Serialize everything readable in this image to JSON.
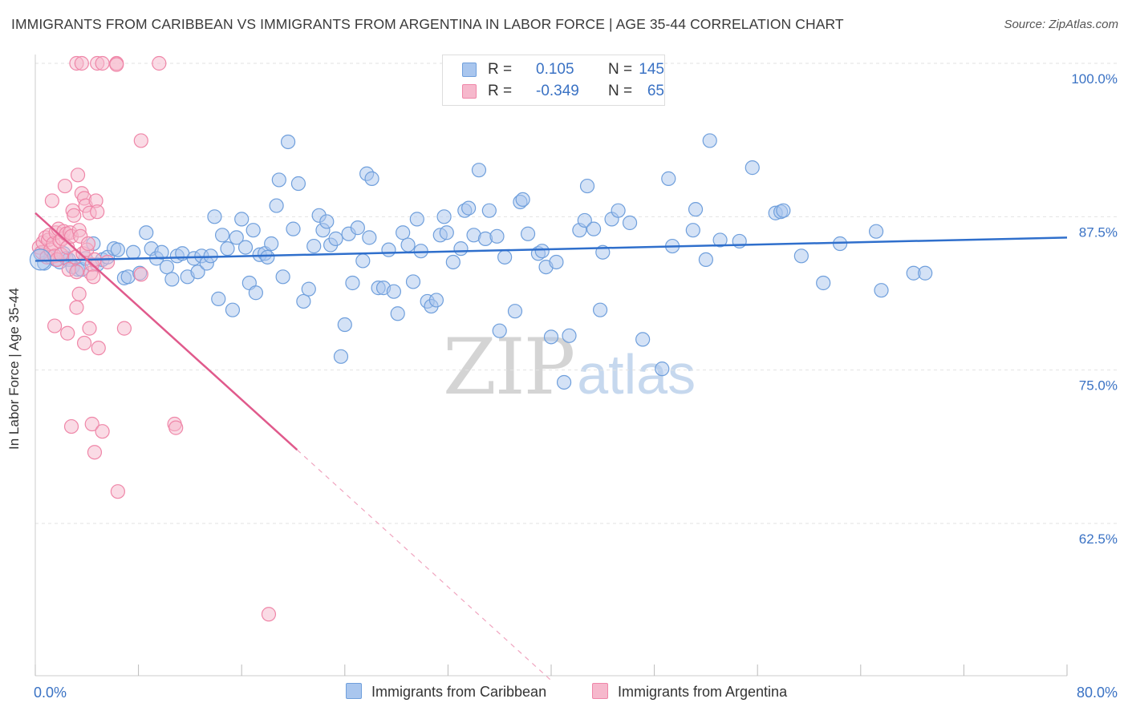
{
  "title": "IMMIGRANTS FROM CARIBBEAN VS IMMIGRANTS FROM ARGENTINA IN LABOR FORCE | AGE 35-44 CORRELATION CHART",
  "source": "Source: ZipAtlas.com",
  "watermark": {
    "zip": "ZIP",
    "atlas": "atlas"
  },
  "legend": {
    "r_label": "R =",
    "n_label": "N =",
    "rows": [
      {
        "r": "0.105",
        "n": "145",
        "color": "#a9c6ee"
      },
      {
        "r": "-0.349",
        "n": "65",
        "color": "#f6b8cc"
      }
    ]
  },
  "chart_data": {
    "type": "scatter",
    "title": "IMMIGRANTS FROM CARIBBEAN VS IMMIGRANTS FROM ARGENTINA IN LABOR FORCE | AGE 35-44 CORRELATION CHART",
    "xlabel": "",
    "ylabel": "In Labor Force | Age 35-44",
    "xlim": [
      0,
      80
    ],
    "ylim": [
      50,
      100
    ],
    "x_tick_labels": [
      "0.0%",
      "80.0%"
    ],
    "y_ticks": [
      62.5,
      75.0,
      87.5,
      100.0
    ],
    "y_tick_labels": [
      "62.5%",
      "75.0%",
      "87.5%",
      "100.0%"
    ],
    "grid": true,
    "legend_position": "top-center",
    "series": [
      {
        "name": "Immigrants from Caribbean",
        "color": "#6f9fdc",
        "fill": "#a9c6ee",
        "trend": {
          "x": [
            0,
            80
          ],
          "y": [
            83.9,
            85.8
          ],
          "color": "#2f6fcc"
        },
        "points": [
          [
            0.4,
            84.5
          ],
          [
            0.7,
            83.7
          ],
          [
            1.2,
            84.2
          ],
          [
            1.6,
            84.0
          ],
          [
            1.9,
            83.8
          ],
          [
            2.2,
            84.5
          ],
          [
            2.4,
            84.1
          ],
          [
            2.6,
            84.0
          ],
          [
            2.9,
            83.4
          ],
          [
            3.3,
            83.2
          ],
          [
            3.6,
            83.2
          ],
          [
            3.9,
            84.1
          ],
          [
            4.5,
            85.3
          ],
          [
            4.8,
            83.6
          ],
          [
            5.2,
            84.0
          ],
          [
            5.6,
            84.2
          ],
          [
            6.1,
            84.9
          ],
          [
            6.4,
            84.8
          ],
          [
            6.9,
            82.5
          ],
          [
            7.2,
            82.6
          ],
          [
            7.6,
            84.6
          ],
          [
            8.1,
            82.9
          ],
          [
            8.6,
            86.2
          ],
          [
            9.0,
            84.9
          ],
          [
            9.4,
            84.1
          ],
          [
            9.8,
            84.6
          ],
          [
            10.2,
            83.4
          ],
          [
            10.6,
            82.4
          ],
          [
            11.0,
            84.3
          ],
          [
            11.4,
            84.5
          ],
          [
            11.8,
            82.6
          ],
          [
            12.3,
            84.1
          ],
          [
            12.6,
            83.0
          ],
          [
            12.9,
            84.3
          ],
          [
            13.3,
            83.7
          ],
          [
            13.6,
            84.3
          ],
          [
            13.9,
            87.5
          ],
          [
            14.2,
            80.8
          ],
          [
            14.5,
            86.0
          ],
          [
            14.9,
            84.9
          ],
          [
            15.3,
            79.9
          ],
          [
            15.6,
            85.8
          ],
          [
            16.0,
            87.3
          ],
          [
            16.3,
            85.0
          ],
          [
            16.6,
            82.1
          ],
          [
            16.9,
            86.4
          ],
          [
            17.1,
            81.3
          ],
          [
            17.4,
            84.4
          ],
          [
            17.8,
            84.5
          ],
          [
            18.0,
            84.2
          ],
          [
            18.3,
            85.3
          ],
          [
            18.7,
            88.4
          ],
          [
            18.9,
            90.5
          ],
          [
            19.2,
            82.6
          ],
          [
            19.6,
            93.6
          ],
          [
            20.0,
            86.5
          ],
          [
            20.4,
            90.2
          ],
          [
            20.8,
            80.6
          ],
          [
            21.2,
            81.6
          ],
          [
            21.6,
            85.1
          ],
          [
            22.0,
            87.6
          ],
          [
            22.3,
            86.4
          ],
          [
            22.6,
            87.1
          ],
          [
            22.9,
            85.2
          ],
          [
            23.3,
            85.7
          ],
          [
            23.7,
            76.1
          ],
          [
            24.0,
            78.7
          ],
          [
            24.3,
            86.1
          ],
          [
            24.6,
            82.1
          ],
          [
            25.0,
            86.6
          ],
          [
            25.4,
            83.9
          ],
          [
            25.7,
            91.0
          ],
          [
            25.9,
            85.8
          ],
          [
            26.1,
            90.6
          ],
          [
            26.6,
            81.7
          ],
          [
            27.0,
            81.7
          ],
          [
            27.4,
            84.8
          ],
          [
            27.8,
            81.4
          ],
          [
            28.1,
            79.6
          ],
          [
            28.5,
            86.2
          ],
          [
            28.9,
            85.2
          ],
          [
            29.3,
            82.2
          ],
          [
            29.6,
            87.3
          ],
          [
            29.9,
            84.7
          ],
          [
            30.4,
            80.6
          ],
          [
            30.7,
            80.2
          ],
          [
            31.1,
            80.7
          ],
          [
            31.4,
            86.0
          ],
          [
            31.7,
            87.5
          ],
          [
            31.9,
            86.2
          ],
          [
            32.4,
            83.8
          ],
          [
            33.0,
            84.9
          ],
          [
            33.3,
            88.0
          ],
          [
            33.6,
            88.2
          ],
          [
            34.0,
            86.0
          ],
          [
            34.4,
            91.3
          ],
          [
            34.9,
            85.7
          ],
          [
            35.2,
            88.0
          ],
          [
            35.8,
            85.9
          ],
          [
            36.0,
            78.2
          ],
          [
            36.4,
            84.2
          ],
          [
            37.2,
            79.8
          ],
          [
            37.6,
            88.7
          ],
          [
            37.8,
            88.9
          ],
          [
            38.2,
            86.1
          ],
          [
            39.0,
            84.5
          ],
          [
            39.3,
            84.7
          ],
          [
            39.6,
            83.4
          ],
          [
            40.0,
            77.7
          ],
          [
            40.4,
            83.8
          ],
          [
            41.0,
            74.0
          ],
          [
            41.4,
            77.8
          ],
          [
            42.2,
            86.4
          ],
          [
            42.6,
            87.2
          ],
          [
            42.8,
            90.0
          ],
          [
            43.3,
            86.5
          ],
          [
            43.8,
            79.9
          ],
          [
            44.0,
            84.6
          ],
          [
            44.7,
            87.3
          ],
          [
            45.2,
            88.0
          ],
          [
            46.1,
            87.0
          ],
          [
            47.1,
            77.5
          ],
          [
            48.6,
            75.1
          ],
          [
            49.1,
            90.6
          ],
          [
            49.4,
            85.1
          ],
          [
            51.0,
            86.4
          ],
          [
            51.2,
            88.1
          ],
          [
            52.0,
            84.0
          ],
          [
            52.3,
            93.7
          ],
          [
            53.1,
            85.6
          ],
          [
            54.6,
            85.5
          ],
          [
            55.6,
            91.5
          ],
          [
            57.4,
            87.8
          ],
          [
            57.8,
            87.9
          ],
          [
            58.0,
            88.0
          ],
          [
            59.4,
            84.3
          ],
          [
            61.1,
            82.1
          ],
          [
            62.4,
            85.3
          ],
          [
            65.2,
            86.3
          ],
          [
            65.6,
            81.5
          ],
          [
            68.1,
            82.9
          ],
          [
            69.0,
            82.9
          ]
        ]
      },
      {
        "name": "Immigrants from Argentina",
        "color": "#ef86a8",
        "fill": "#f6b8cc",
        "trend": {
          "x": [
            0,
            20.3
          ],
          "y": [
            87.8,
            68.5
          ],
          "color": "#e05a8c",
          "dashed_to": [
            40,
            49.7
          ]
        },
        "points": [
          [
            0.3,
            85.0
          ],
          [
            0.5,
            84.6
          ],
          [
            0.6,
            85.4
          ],
          [
            0.8,
            85.8
          ],
          [
            0.9,
            84.2
          ],
          [
            1.0,
            85.6
          ],
          [
            1.1,
            86.0
          ],
          [
            1.2,
            84.8
          ],
          [
            1.3,
            88.8
          ],
          [
            1.4,
            85.3
          ],
          [
            1.5,
            84.3
          ],
          [
            1.6,
            86.2
          ],
          [
            1.7,
            84.0
          ],
          [
            1.8,
            86.5
          ],
          [
            1.9,
            85.5
          ],
          [
            2.0,
            84.4
          ],
          [
            2.1,
            85.7
          ],
          [
            2.2,
            86.3
          ],
          [
            2.3,
            90.0
          ],
          [
            2.4,
            86.1
          ],
          [
            2.5,
            85.0
          ],
          [
            2.6,
            83.2
          ],
          [
            2.7,
            86.2
          ],
          [
            2.8,
            85.9
          ],
          [
            2.9,
            88.0
          ],
          [
            3.0,
            87.6
          ],
          [
            3.1,
            84.2
          ],
          [
            3.2,
            83.0
          ],
          [
            3.3,
            90.9
          ],
          [
            3.4,
            86.4
          ],
          [
            3.5,
            85.9
          ],
          [
            3.6,
            89.4
          ],
          [
            3.7,
            84.5
          ],
          [
            3.8,
            89.0
          ],
          [
            3.9,
            88.4
          ],
          [
            4.0,
            84.8
          ],
          [
            4.1,
            85.3
          ],
          [
            4.2,
            87.8
          ],
          [
            4.3,
            82.9
          ],
          [
            4.4,
            83.6
          ],
          [
            4.5,
            82.6
          ],
          [
            4.6,
            84.0
          ],
          [
            4.7,
            88.8
          ],
          [
            4.8,
            87.9
          ],
          [
            1.5,
            78.6
          ],
          [
            2.5,
            78.0
          ],
          [
            2.8,
            70.4
          ],
          [
            3.2,
            80.1
          ],
          [
            3.4,
            81.2
          ],
          [
            3.8,
            77.2
          ],
          [
            4.2,
            78.4
          ],
          [
            4.4,
            70.6
          ],
          [
            4.6,
            68.3
          ],
          [
            4.9,
            76.8
          ],
          [
            5.2,
            70.0
          ],
          [
            5.6,
            83.8
          ],
          [
            6.4,
            65.1
          ],
          [
            6.9,
            78.4
          ],
          [
            8.2,
            82.8
          ],
          [
            8.2,
            93.7
          ],
          [
            10.8,
            70.6
          ],
          [
            10.9,
            70.3
          ],
          [
            6.3,
            100.0
          ],
          [
            6.3,
            99.9
          ],
          [
            18.1,
            55.1
          ]
        ],
        "top_points": [
          [
            3.2,
            100.0
          ],
          [
            3.6,
            100.0
          ],
          [
            4.8,
            100.0
          ],
          [
            5.2,
            100.0
          ],
          [
            9.6,
            100.0
          ]
        ]
      }
    ]
  },
  "bottom_legend": [
    {
      "label": "Immigrants from Caribbean",
      "color": "#a9c6ee"
    },
    {
      "label": "Immigrants from Argentina",
      "color": "#f6b8cc"
    }
  ]
}
